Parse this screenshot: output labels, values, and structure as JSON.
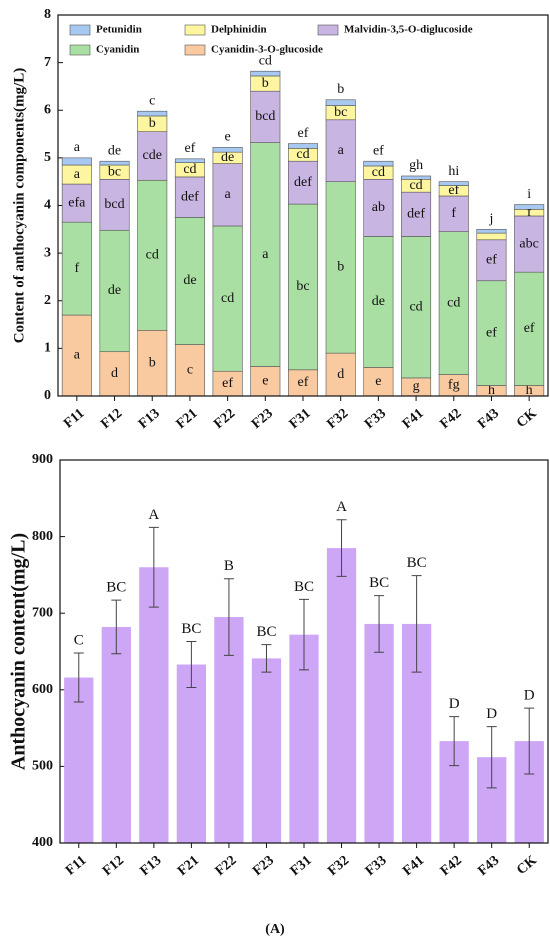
{
  "chart_data": [
    {
      "type": "bar",
      "stacked": true,
      "y_label": "Content of anthocyanin components(mg/L)",
      "categories": [
        "F11",
        "F12",
        "F13",
        "F21",
        "F22",
        "F23",
        "F31",
        "F32",
        "F33",
        "F41",
        "F42",
        "F43",
        "CK"
      ],
      "ylim": [
        0,
        8
      ],
      "yticks": [
        0,
        1,
        2,
        3,
        4,
        5,
        6,
        7,
        8
      ],
      "legend": "upper left",
      "series": [
        {
          "name": "Cyanidin-3-O-glucoside",
          "color": "#f9c9a0",
          "values": [
            1.7,
            0.93,
            1.38,
            1.08,
            0.52,
            0.62,
            0.55,
            0.9,
            0.6,
            0.38,
            0.45,
            0.22,
            0.22
          ],
          "letters": [
            "a",
            "d",
            "b",
            "c",
            "ef",
            "e",
            "ef",
            "d",
            "e",
            "g",
            "fg",
            "h",
            "h"
          ]
        },
        {
          "name": "Cyanidin",
          "color": "#aadfa4",
          "values": [
            1.95,
            2.55,
            3.15,
            2.67,
            3.05,
            4.7,
            3.48,
            3.6,
            2.75,
            2.97,
            3.0,
            2.2,
            2.38
          ],
          "letters": [
            "f",
            "de",
            "cd",
            "de",
            "cd",
            "a",
            "bc",
            "b",
            "de",
            "cd",
            "cd",
            "ef",
            "ef"
          ]
        },
        {
          "name": "Malvidin-3,5-O-diglucoside",
          "color": "#c9b5e2",
          "values": [
            0.8,
            1.07,
            1.02,
            0.85,
            1.31,
            1.08,
            0.9,
            1.3,
            1.2,
            0.93,
            0.75,
            0.86,
            1.18
          ],
          "letters": [
            "efa",
            "bcd",
            "cde",
            "def",
            "a",
            "bcd",
            "def",
            "a",
            "ab",
            "def",
            "f",
            "ef",
            "abc"
          ]
        },
        {
          "name": "Delphinidin",
          "color": "#fdf5a0",
          "values": [
            0.4,
            0.3,
            0.33,
            0.3,
            0.24,
            0.32,
            0.27,
            0.3,
            0.28,
            0.27,
            0.22,
            0.14,
            0.14
          ],
          "letters": [
            "a",
            "bc",
            "b",
            "cd",
            "de",
            "b",
            "cd",
            "bc",
            "cd",
            "cd",
            "ef",
            null,
            "f"
          ]
        },
        {
          "name": "Petunidin",
          "color": "#a7c8f0",
          "values": [
            0.15,
            0.08,
            0.1,
            0.08,
            0.1,
            0.1,
            0.1,
            0.12,
            0.1,
            0.07,
            0.08,
            0.08,
            0.1
          ],
          "letters": [
            "a",
            "de",
            "c",
            "ef",
            "e",
            "cd",
            "ef",
            "b",
            "ef",
            "gh",
            "hi",
            "j",
            "i"
          ]
        }
      ]
    },
    {
      "type": "bar",
      "y_label": "Anthocyanin content(mg/L)",
      "categories": [
        "F11",
        "F12",
        "F13",
        "F21",
        "F22",
        "F23",
        "F31",
        "F32",
        "F33",
        "F41",
        "F42",
        "F43",
        "CK"
      ],
      "values": [
        616,
        682,
        760,
        633,
        695,
        641,
        672,
        785,
        686,
        686,
        533,
        512,
        533
      ],
      "errors": [
        32,
        35,
        52,
        30,
        50,
        18,
        46,
        37,
        37,
        63,
        32,
        40,
        43
      ],
      "letters": [
        "C",
        "BC",
        "A",
        "BC",
        "B",
        "BC",
        "BC",
        "A",
        "BC",
        "BC",
        "D",
        "D",
        "D"
      ],
      "color": "#cea6f6",
      "ylim": [
        400,
        900
      ],
      "yticks": [
        400,
        500,
        600,
        700,
        800,
        900
      ]
    }
  ],
  "caption": "(A)"
}
